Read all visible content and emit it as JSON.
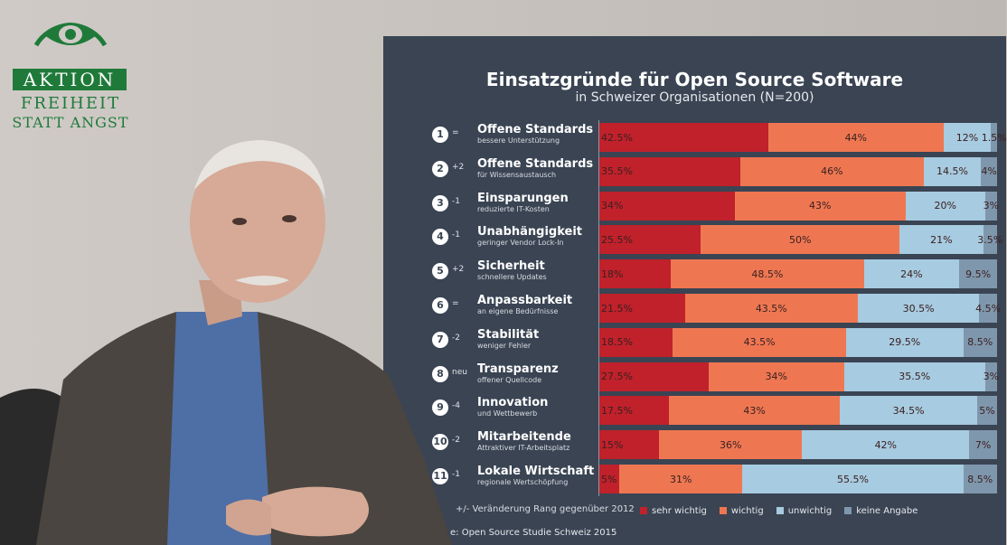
{
  "logo": {
    "line1": "AKTION",
    "line2": "FREIHEIT",
    "line3": "STATT ANGST",
    "color": "#1f7a3a"
  },
  "chart_data": {
    "type": "bar",
    "orientation": "horizontal-stacked-100",
    "title": "Einsatzgründe für Open Source Software",
    "subtitle": "in Schweizer Organisationen (N=200)",
    "xlim": [
      0,
      100
    ],
    "series": [
      {
        "name": "sehr wichtig",
        "color": "#c0212b"
      },
      {
        "name": "wichtig",
        "color": "#ee7752"
      },
      {
        "name": "unwichtig",
        "color": "#a7cbe0"
      },
      {
        "name": "keine Angabe",
        "color": "#7f97ad"
      }
    ],
    "rows": [
      {
        "rank": "1",
        "change": "=",
        "label": "Offene Standards",
        "sublabel": "bessere Unterstützung",
        "values": [
          42.5,
          44,
          12,
          1.5
        ],
        "texts": [
          "42.5%",
          "44%",
          "12%",
          "1.5%"
        ]
      },
      {
        "rank": "2",
        "change": "+2",
        "label": "Offene Standards",
        "sublabel": "für Wissensaustausch",
        "values": [
          35.5,
          46,
          14.5,
          4
        ],
        "texts": [
          "35.5%",
          "46%",
          "14.5%",
          "4%"
        ]
      },
      {
        "rank": "3",
        "change": "-1",
        "label": "Einsparungen",
        "sublabel": "reduzierte IT-Kosten",
        "values": [
          34,
          43,
          20,
          3
        ],
        "texts": [
          "34%",
          "43%",
          "20%",
          "3%"
        ]
      },
      {
        "rank": "4",
        "change": "-1",
        "label": "Unabhängigkeit",
        "sublabel": "geringer Vendor Lock-In",
        "values": [
          25.5,
          50,
          21,
          3.5
        ],
        "texts": [
          "25.5%",
          "50%",
          "21%",
          "3.5%"
        ]
      },
      {
        "rank": "5",
        "change": "+2",
        "label": "Sicherheit",
        "sublabel": "schnellere Updates",
        "values": [
          18,
          48.5,
          24,
          9.5
        ],
        "texts": [
          "18%",
          "48.5%",
          "24%",
          "9.5%"
        ]
      },
      {
        "rank": "6",
        "change": "=",
        "label": "Anpassbarkeit",
        "sublabel": "an eigene Bedürfnisse",
        "values": [
          21.5,
          43.5,
          30.5,
          4.5
        ],
        "texts": [
          "21.5%",
          "43.5%",
          "30.5%",
          "4.5%"
        ]
      },
      {
        "rank": "7",
        "change": "-2",
        "label": "Stabilität",
        "sublabel": "weniger Fehler",
        "values": [
          18.5,
          43.5,
          29.5,
          8.5
        ],
        "texts": [
          "18.5%",
          "43.5%",
          "29.5%",
          "8.5%"
        ]
      },
      {
        "rank": "8",
        "change": "neu",
        "label": "Transparenz",
        "sublabel": "offener Quellcode",
        "values": [
          27.5,
          34,
          35.5,
          3
        ],
        "texts": [
          "27.5%",
          "34%",
          "35.5%",
          "3%"
        ]
      },
      {
        "rank": "9",
        "change": "-4",
        "label": "Innovation",
        "sublabel": "und Wettbewerb",
        "values": [
          17.5,
          43,
          34.5,
          5
        ],
        "texts": [
          "17.5%",
          "43%",
          "34.5%",
          "5%"
        ]
      },
      {
        "rank": "10",
        "change": "-2",
        "label": "Mitarbeitende",
        "sublabel": "Attraktiver IT-Arbeitsplatz",
        "values": [
          15,
          36,
          42,
          7
        ],
        "texts": [
          "15%",
          "36%",
          "42%",
          "7%"
        ]
      },
      {
        "rank": "11",
        "change": "-1",
        "label": "Lokale Wirtschaft",
        "sublabel": "regionale Wertschöpfung",
        "values": [
          5,
          31,
          55.5,
          8.5
        ],
        "texts": [
          "5%",
          "31%",
          "55.5%",
          "8.5%"
        ]
      }
    ],
    "footnote": "+/- Veränderung Rang gegenüber 2012",
    "source": "e: Open Source Studie Schweiz 2015"
  }
}
